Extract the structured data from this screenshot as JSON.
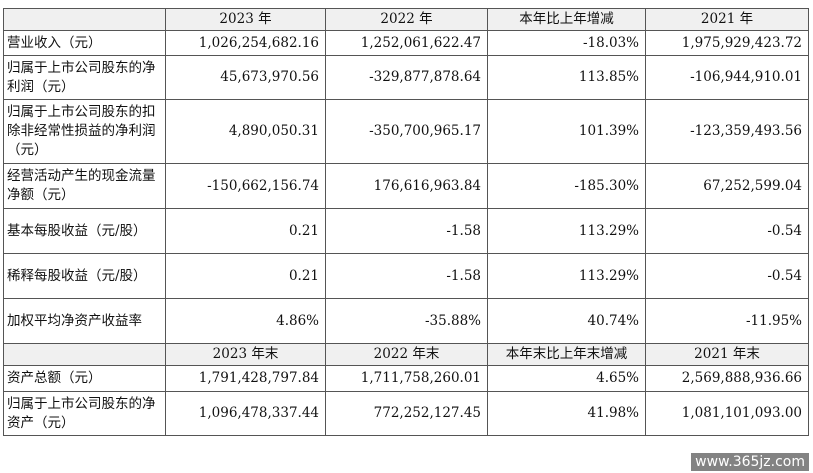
{
  "header": [
    "",
    "2023 年",
    "2022 年",
    "本年比上年增减",
    "2021 年"
  ],
  "rows": [
    {
      "label": "营业收入（元）",
      "values": [
        "1,026,254,682.16",
        "1,252,061,622.47",
        "-18.03%",
        "1,975,929,423.72"
      ]
    },
    {
      "label": "归属于上市公司股东的净利润（元）",
      "values": [
        "45,673,970.56",
        "-329,877,878.64",
        "113.85%",
        "-106,944,910.01"
      ]
    },
    {
      "label": "归属于上市公司股东的扣除非经常性损益的净利润（元）",
      "values": [
        "4,890,050.31",
        "-350,700,965.17",
        "101.39%",
        "-123,359,493.56"
      ]
    },
    {
      "label": "经营活动产生的现金流量净额（元）",
      "values": [
        "-150,662,156.74",
        "176,616,963.84",
        "-185.30%",
        "67,252,599.04"
      ]
    },
    {
      "label": "基本每股收益（元/股）",
      "values": [
        "0.21",
        "-1.58",
        "113.29%",
        "-0.54"
      ]
    },
    {
      "label": "稀释每股收益（元/股）",
      "values": [
        "0.21",
        "-1.58",
        "113.29%",
        "-0.54"
      ]
    },
    {
      "label": "加权平均净资产收益率",
      "values": [
        "4.86%",
        "-35.88%",
        "40.74%",
        "-11.95%"
      ]
    }
  ],
  "header2": [
    "",
    "2023 年末",
    "2022 年末",
    "本年末比上年末增减",
    "2021 年末"
  ],
  "rows2": [
    {
      "label": "资产总额（元）",
      "values": [
        "1,791,428,797.84",
        "1,711,758,260.01",
        "4.65%",
        "2,569,888,936.66"
      ]
    },
    {
      "label": "归属于上市公司股东的净资产（元）",
      "values": [
        "1,096,478,337.44",
        "772,252,127.45",
        "41.98%",
        "1,081,101,093.00"
      ]
    }
  ],
  "watermark": "www.365jz.com"
}
